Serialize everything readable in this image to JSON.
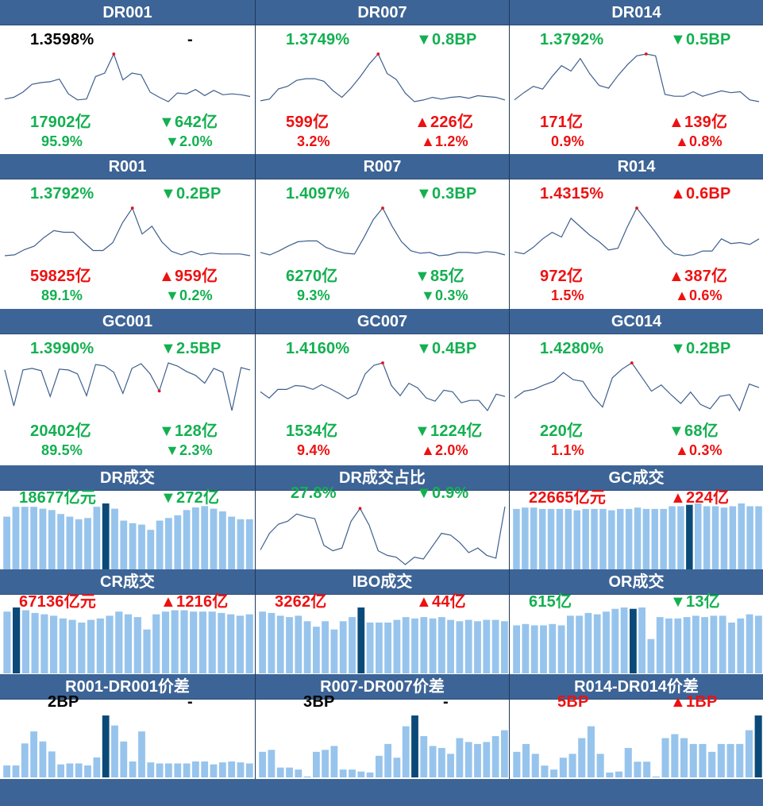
{
  "colors": {
    "header_bg": "#3d6496",
    "up": "#ee1111",
    "down": "#13b050",
    "line": "#3e5f8e",
    "peak": "#e0141e",
    "bar": "#97c4ec",
    "bar_hl": "#0b4a78"
  },
  "tiles": [
    {
      "title": "DR001",
      "kind": "line",
      "v1": "1.3598%",
      "v1c": "black",
      "v2": "-",
      "v2c": "black",
      "v3": "17902亿",
      "v3c": "green",
      "v4": "▼642亿",
      "v4c": "green",
      "v5": "95.9%",
      "v5c": "green",
      "v6": "▼2.0%",
      "v6c": "green",
      "series": [
        1.2,
        1.4,
        2.0,
        2.9,
        3.1,
        3.2,
        3.5,
        1.8,
        1.1,
        1.2,
        3.8,
        4.2,
        6.4,
        3.4,
        4.2,
        4.0,
        2.0,
        1.4,
        0.9,
        1.9,
        1.8,
        2.3,
        1.6,
        2.2,
        1.7,
        1.8,
        1.7,
        1.5
      ],
      "peak": 12
    },
    {
      "title": "DR007",
      "kind": "line",
      "v1": "1.3749%",
      "v1c": "green",
      "v2": "▼0.8BP",
      "v2c": "green",
      "v3": "599亿",
      "v3c": "red",
      "v4": "▲226亿",
      "v4c": "red",
      "v5": "3.2%",
      "v5c": "red",
      "v6": "▲1.2%",
      "v6c": "red",
      "series": [
        0.6,
        0.8,
        2.0,
        2.3,
        3.0,
        3.2,
        3.2,
        2.9,
        1.8,
        1.0,
        2.1,
        3.4,
        4.9,
        6.1,
        3.8,
        3.1,
        1.5,
        0.5,
        0.7,
        1.0,
        0.8,
        1.0,
        1.1,
        0.9,
        1.2,
        1.1,
        1.0,
        0.7
      ],
      "peak": 13
    },
    {
      "title": "DR014",
      "kind": "line",
      "v1": "1.3792%",
      "v1c": "green",
      "v2": "▼0.5BP",
      "v2c": "green",
      "v3": "171亿",
      "v3c": "red",
      "v4": "▲139亿",
      "v4c": "red",
      "v5": "0.9%",
      "v5c": "red",
      "v6": "▲0.8%",
      "v6c": "red",
      "series": [
        1.0,
        1.8,
        2.5,
        2.2,
        3.6,
        4.8,
        4.2,
        5.6,
        3.9,
        2.6,
        2.3,
        3.7,
        4.9,
        5.9,
        6.1,
        5.9,
        1.6,
        1.4,
        1.4,
        1.9,
        1.4,
        1.7,
        2.0,
        1.8,
        1.9,
        1.0,
        0.8
      ],
      "peak": 14
    },
    {
      "title": "R001",
      "kind": "line",
      "v1": "1.3792%",
      "v1c": "green",
      "v2": "▼0.2BP",
      "v2c": "green",
      "v3": "59825亿",
      "v3c": "red",
      "v4": "▲959亿",
      "v4c": "red",
      "v5": "89.1%",
      "v5c": "green",
      "v6": "▼0.2%",
      "v6c": "green",
      "series": [
        1.5,
        1.6,
        2.2,
        2.6,
        3.6,
        4.4,
        4.2,
        4.2,
        3.1,
        2.1,
        2.1,
        3.0,
        5.3,
        7.0,
        4.0,
        4.9,
        3.1,
        2.0,
        1.6,
        2.0,
        1.6,
        1.8,
        1.7,
        1.7,
        1.7,
        1.5
      ],
      "peak": 13
    },
    {
      "title": "R007",
      "kind": "line",
      "v1": "1.4097%",
      "v1c": "green",
      "v2": "▼0.3BP",
      "v2c": "green",
      "v3": "6270亿",
      "v3c": "green",
      "v4": "▼85亿",
      "v4c": "green",
      "v5": "9.3%",
      "v5c": "green",
      "v6": "▼0.3%",
      "v6c": "green",
      "series": [
        1.6,
        1.3,
        1.8,
        2.4,
        2.9,
        3.0,
        3.0,
        2.2,
        1.8,
        1.5,
        1.4,
        3.4,
        5.6,
        7.0,
        4.8,
        2.9,
        1.8,
        1.5,
        1.6,
        1.2,
        1.3,
        1.6,
        1.6,
        1.5,
        1.7,
        1.6,
        1.3
      ],
      "peak": 13
    },
    {
      "title": "R014",
      "kind": "line",
      "v1": "1.4315%",
      "v1c": "red",
      "v2": "▲0.6BP",
      "v2c": "red",
      "v3": "972亿",
      "v3c": "red",
      "v4": "▲387亿",
      "v4c": "red",
      "v5": "1.5%",
      "v5c": "red",
      "v6": "▲0.6%",
      "v6c": "red",
      "series": [
        1.8,
        1.6,
        2.3,
        3.2,
        3.9,
        3.4,
        5.4,
        4.5,
        3.6,
        2.9,
        2.0,
        2.2,
        4.5,
        6.5,
        5.2,
        3.9,
        2.5,
        1.6,
        1.4,
        1.5,
        1.9,
        1.9,
        3.2,
        2.7,
        2.8,
        2.6,
        3.2
      ],
      "peak": 13
    },
    {
      "title": "GC001",
      "kind": "line",
      "v1": "1.3990%",
      "v1c": "green",
      "v2": "▼2.5BP",
      "v2c": "green",
      "v3": "20402亿",
      "v3c": "green",
      "v4": "▼128亿",
      "v4c": "green",
      "v5": "89.5%",
      "v5c": "green",
      "v6": "▼2.3%",
      "v6c": "green",
      "series": [
        5.8,
        1.2,
        5.8,
        6.0,
        5.7,
        2.4,
        5.9,
        5.8,
        5.3,
        2.5,
        6.5,
        6.3,
        5.5,
        2.8,
        6.0,
        6.6,
        5.3,
        3.1,
        6.7,
        6.3,
        5.6,
        5.1,
        4.1,
        6.0,
        5.5,
        0.6,
        6.1,
        5.8
      ],
      "peak": 17
    },
    {
      "title": "GC007",
      "kind": "line",
      "v1": "1.4160%",
      "v1c": "green",
      "v2": "▼0.4BP",
      "v2c": "green",
      "v3": "1534亿",
      "v3c": "green",
      "v4": "▼1224亿",
      "v4c": "green",
      "v5": "9.4%",
      "v5c": "red",
      "v6": "▲2.0%",
      "v6c": "red",
      "series": [
        2.8,
        2.0,
        3.1,
        3.1,
        3.6,
        3.5,
        3.1,
        3.7,
        3.2,
        2.6,
        1.9,
        2.5,
        5.1,
        6.2,
        6.5,
        3.6,
        2.3,
        3.9,
        3.3,
        2.0,
        1.6,
        3.0,
        2.8,
        1.4,
        1.7,
        1.7,
        0.4,
        2.5,
        2.2
      ],
      "peak": 14
    },
    {
      "title": "GC014",
      "kind": "line",
      "v1": "1.4280%",
      "v1c": "green",
      "v2": "▼0.2BP",
      "v2c": "green",
      "v3": "220亿",
      "v3c": "green",
      "v4": "▼68亿",
      "v4c": "green",
      "v5": "1.1%",
      "v5c": "red",
      "v6": "▲0.3%",
      "v6c": "red",
      "series": [
        2.6,
        3.4,
        3.6,
        4.1,
        4.5,
        5.5,
        4.7,
        4.5,
        2.8,
        1.6,
        4.9,
        5.9,
        6.6,
        5.0,
        3.4,
        4.1,
        3.0,
        2.0,
        3.3,
        1.9,
        1.4,
        2.8,
        3.0,
        1.2,
        4.2,
        3.8
      ],
      "peak": 12
    },
    {
      "title": "DR成交",
      "kind": "bar",
      "v1": "18677亿元",
      "v1c": "green",
      "v2": "▼272亿",
      "v2c": "green",
      "bars": [
        8.0,
        9.5,
        9.5,
        9.5,
        9.2,
        9.0,
        8.4,
        8.0,
        7.6,
        7.8,
        9.5,
        10.0,
        9.2,
        7.4,
        7.0,
        6.8,
        6.0,
        7.4,
        7.8,
        8.2,
        9.0,
        9.4,
        9.6,
        9.2,
        8.8,
        8.0,
        7.6,
        7.6
      ],
      "hl": 11
    },
    {
      "title": "DR成交占比",
      "kind": "line",
      "v1": "27.8%",
      "v1c": "green",
      "v2": "▼0.9%",
      "v2c": "green",
      "series": [
        1.6,
        3.4,
        4.4,
        4.7,
        5.5,
        5.2,
        5.0,
        2.1,
        1.5,
        1.8,
        4.7,
        6.1,
        4.3,
        1.5,
        1.0,
        0.8,
        0.0,
        0.8,
        0.6,
        2.0,
        3.4,
        3.2,
        2.4,
        1.3,
        1.8,
        1.0,
        0.7,
        6.3
      ],
      "peak": 11
    },
    {
      "title": "GC成交",
      "kind": "bar",
      "v1": "22665亿元",
      "v1c": "red",
      "v2": "▲224亿",
      "v2c": "red",
      "bars": [
        8.8,
        9.0,
        9.0,
        8.8,
        8.8,
        8.8,
        8.8,
        8.6,
        8.8,
        8.8,
        8.8,
        8.6,
        8.8,
        8.8,
        9.0,
        8.8,
        8.8,
        8.8,
        9.2,
        9.2,
        9.4,
        9.6,
        9.2,
        9.2,
        9.0,
        9.2,
        9.6,
        9.2,
        9.2
      ],
      "hl": 20
    },
    {
      "title": "CR成交",
      "kind": "bar",
      "v1": "67136亿元",
      "v1c": "red",
      "v2": "▲1216亿",
      "v2c": "red",
      "bars": [
        9.0,
        9.6,
        9.2,
        8.8,
        8.6,
        8.4,
        8.0,
        7.8,
        7.4,
        7.8,
        8.0,
        8.4,
        9.0,
        8.6,
        8.2,
        6.4,
        8.6,
        9.0,
        9.2,
        9.2,
        9.0,
        9.0,
        9.0,
        8.8,
        8.6,
        8.4,
        8.6
      ],
      "hl": 1
    },
    {
      "title": "IBO成交",
      "kind": "bar",
      "v1": "3262亿",
      "v1c": "red",
      "v2": "▲44亿",
      "v2c": "red",
      "bars": [
        9.0,
        8.8,
        8.4,
        8.2,
        8.4,
        7.6,
        6.8,
        7.6,
        6.4,
        7.6,
        8.2,
        9.6,
        7.4,
        7.4,
        7.4,
        7.8,
        8.2,
        8.0,
        8.2,
        8.0,
        8.2,
        7.8,
        7.6,
        7.8,
        7.6,
        7.8,
        7.8,
        7.6
      ],
      "hl": 11
    },
    {
      "title": "OR成交",
      "kind": "bar",
      "v1": "615亿",
      "v1c": "green",
      "v2": "▼13亿",
      "v2c": "green",
      "bars": [
        7.0,
        7.2,
        7.0,
        7.0,
        7.2,
        7.0,
        8.4,
        8.4,
        8.8,
        8.6,
        9.0,
        9.4,
        9.6,
        9.4,
        9.6,
        5.0,
        8.2,
        8.0,
        8.0,
        8.2,
        8.4,
        8.2,
        8.4,
        8.4,
        7.4,
        8.0,
        8.6,
        8.4
      ],
      "hl": 13
    },
    {
      "title": "R001-DR001价差",
      "kind": "bar",
      "v1": "2BP",
      "v1c": "black",
      "v2": "-",
      "v2c": "black",
      "bars": [
        1.2,
        1.2,
        3.4,
        4.6,
        3.6,
        2.6,
        1.3,
        1.4,
        1.4,
        1.2,
        2.0,
        6.2,
        5.2,
        3.6,
        1.6,
        4.6,
        1.5,
        1.4,
        1.4,
        1.4,
        1.4,
        1.6,
        1.6,
        1.3,
        1.5,
        1.6,
        1.5,
        1.4
      ],
      "hl": 11
    },
    {
      "title": "R007-DR007价差",
      "kind": "bar",
      "v1": "3BP",
      "v1c": "black",
      "v2": "-",
      "v2c": "black",
      "bars": [
        2.6,
        2.8,
        1.0,
        1.0,
        0.8,
        0.1,
        2.6,
        2.8,
        3.2,
        0.8,
        0.8,
        0.6,
        0.5,
        2.2,
        3.4,
        2.0,
        5.2,
        6.3,
        4.2,
        3.2,
        3.0,
        2.4,
        4.0,
        3.6,
        3.4,
        3.6,
        4.2,
        4.8
      ],
      "hl": 17
    },
    {
      "title": "R014-DR014价差",
      "kind": "bar",
      "v1": "5BP",
      "v1c": "red",
      "v2": "▲1BP",
      "v2c": "red",
      "bars": [
        2.6,
        3.4,
        2.4,
        1.2,
        0.8,
        2.0,
        2.4,
        4.0,
        5.2,
        2.4,
        0.5,
        0.6,
        3.0,
        1.6,
        1.6,
        0.1,
        4.0,
        4.4,
        4.0,
        3.4,
        3.4,
        2.6,
        3.4,
        3.4,
        3.4,
        4.8,
        6.3
      ],
      "hl": 26
    }
  ]
}
